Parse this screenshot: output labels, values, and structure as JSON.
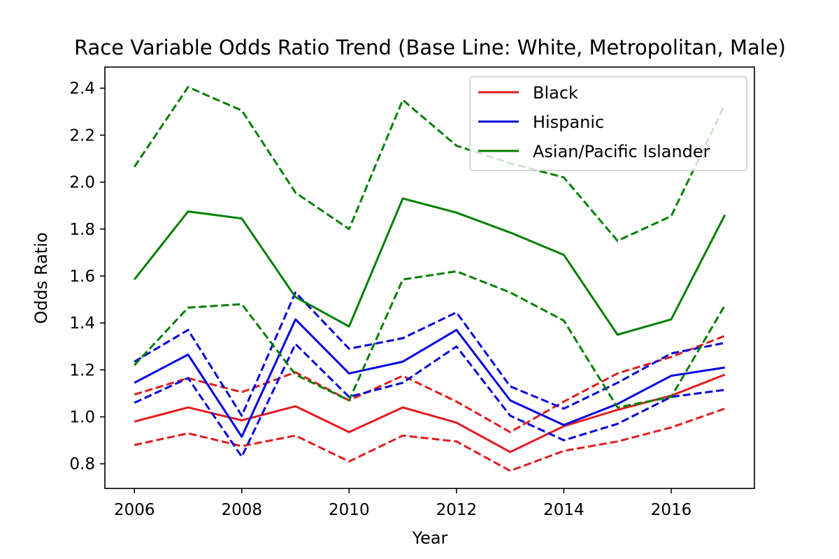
{
  "chart_data": {
    "type": "line",
    "title": "Race Variable Odds Ratio Trend (Base Line: White, Metropolitan, Male)",
    "xlabel": "Year",
    "ylabel": "Odds Ratio",
    "xlim": [
      2005.45,
      2017.55
    ],
    "ylim": [
      0.695,
      2.49
    ],
    "xticks": [
      2006,
      2008,
      2010,
      2012,
      2014,
      2016
    ],
    "yticks": [
      "0.8",
      "1.0",
      "1.2",
      "1.4",
      "1.6",
      "1.8",
      "2.0",
      "2.2",
      "2.4"
    ],
    "grid": false,
    "legend_position": "top-right",
    "x": [
      2006,
      2007,
      2008,
      2009,
      2010,
      2011,
      2012,
      2013,
      2014,
      2015,
      2016,
      2017
    ],
    "series": [
      {
        "name": "Black",
        "color": "#e41a1c",
        "values": [
          0.98,
          1.04,
          0.985,
          1.045,
          0.935,
          1.04,
          0.975,
          0.85,
          0.96,
          1.03,
          1.09,
          1.18
        ],
        "lower": [
          0.88,
          0.93,
          0.875,
          0.92,
          0.81,
          0.92,
          0.895,
          0.77,
          0.855,
          0.895,
          0.955,
          1.035
        ],
        "upper": [
          1.095,
          1.165,
          1.105,
          1.19,
          1.07,
          1.175,
          1.065,
          0.935,
          1.065,
          1.185,
          1.255,
          1.345
        ]
      },
      {
        "name": "Hispanic",
        "color": "#0000e0",
        "values": [
          1.145,
          1.265,
          0.915,
          1.415,
          1.185,
          1.235,
          1.37,
          1.07,
          0.965,
          1.055,
          1.175,
          1.21
        ],
        "lower": [
          1.06,
          1.165,
          0.83,
          1.31,
          1.085,
          1.145,
          1.3,
          1.005,
          0.9,
          0.97,
          1.085,
          1.115
        ],
        "upper": [
          1.235,
          1.37,
          1.005,
          1.53,
          1.29,
          1.335,
          1.445,
          1.13,
          1.035,
          1.145,
          1.27,
          1.315
        ]
      },
      {
        "name": "Asian/Pacific Islander",
        "color": "#007f00",
        "values": [
          1.585,
          1.875,
          1.845,
          1.51,
          1.385,
          1.93,
          1.87,
          1.785,
          1.69,
          1.35,
          1.415,
          1.86
        ],
        "lower": [
          1.22,
          1.465,
          1.48,
          1.18,
          1.07,
          1.585,
          1.62,
          1.53,
          1.41,
          1.04,
          1.085,
          1.475
        ],
        "upper": [
          2.065,
          2.405,
          2.305,
          1.955,
          1.8,
          2.35,
          2.155,
          2.08,
          2.02,
          1.75,
          1.855,
          2.33
        ]
      }
    ]
  }
}
